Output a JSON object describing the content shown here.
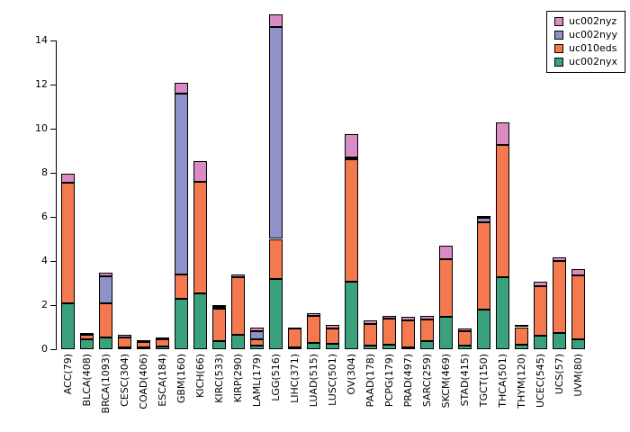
{
  "chart_data": {
    "type": "bar",
    "stacked": true,
    "title": "",
    "xlabel": "",
    "ylabel": "",
    "grid": false,
    "y_axis": {
      "min": 0,
      "max": 14,
      "tick_step": 2,
      "ticks": [
        0,
        2,
        4,
        6,
        8,
        10,
        12,
        14
      ]
    },
    "categories": [
      "ACC(79)",
      "BLCA(408)",
      "BRCA(1093)",
      "CESC(304)",
      "COAD(406)",
      "ESCA(184)",
      "GBM(160)",
      "KICH(66)",
      "KIRC(533)",
      "KIRP(290)",
      "LAML(179)",
      "LGG(516)",
      "LIHC(371)",
      "LUAD(515)",
      "LUSC(501)",
      "OV(304)",
      "PAAD(178)",
      "PCPG(179)",
      "PRAD(497)",
      "SARC(259)",
      "SKCM(469)",
      "STAD(415)",
      "TGCT(150)",
      "THCA(501)",
      "THYM(120)",
      "UCEC(545)",
      "UCS(57)",
      "UVM(80)"
    ],
    "series": [
      {
        "name": "uc002nyx",
        "color": "#3BA17C",
        "values": [
          2.1,
          0.45,
          0.55,
          0.1,
          0.07,
          0.12,
          2.3,
          2.55,
          0.35,
          0.65,
          0.15,
          3.2,
          0.07,
          0.3,
          0.25,
          3.05,
          0.15,
          0.2,
          0.1,
          0.35,
          1.45,
          0.15,
          1.8,
          3.25,
          0.2,
          0.6,
          0.75,
          0.45
        ]
      },
      {
        "name": "uc010eds",
        "color": "#F4794F",
        "values": [
          5.45,
          0.2,
          1.55,
          0.45,
          0.25,
          0.33,
          1.1,
          5.05,
          1.5,
          2.6,
          0.3,
          1.8,
          0.85,
          1.2,
          0.7,
          5.55,
          1.0,
          1.2,
          1.2,
          1.0,
          2.65,
          0.65,
          3.95,
          6.0,
          0.8,
          2.25,
          3.25,
          2.9
        ]
      },
      {
        "name": "uc002nyy",
        "color": "#8E92C6",
        "values": [
          0,
          0,
          1.2,
          0,
          0,
          0,
          8.2,
          0,
          0.05,
          0,
          0.35,
          9.6,
          0,
          0,
          0,
          0.1,
          0,
          0,
          0,
          0,
          0,
          0,
          0.2,
          0,
          0,
          0,
          0,
          0
        ]
      },
      {
        "name": "uc002nyz",
        "color": "#DA8BC3",
        "values": [
          0.4,
          0.1,
          0.15,
          0.1,
          0.08,
          0.1,
          0.5,
          0.95,
          0.1,
          0.15,
          0.2,
          0.6,
          0.08,
          0.15,
          0.15,
          1.05,
          0.15,
          0.1,
          0.15,
          0.15,
          0.6,
          0.15,
          0.1,
          1.05,
          0.1,
          0.2,
          0.15,
          0.3
        ]
      }
    ],
    "legend": {
      "position": "top-right",
      "entries": [
        "uc002nyz",
        "uc002nyy",
        "uc010eds",
        "uc002nyx"
      ]
    }
  }
}
